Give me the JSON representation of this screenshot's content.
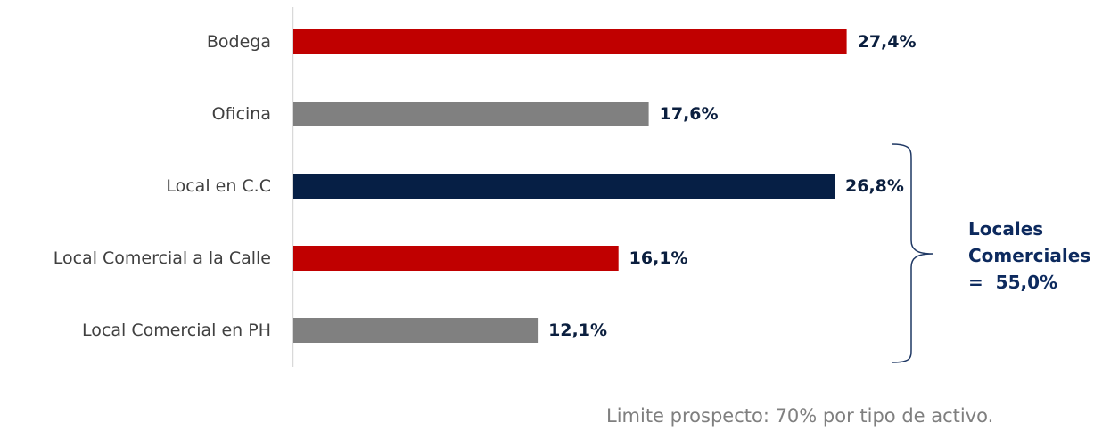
{
  "chart_data": {
    "type": "bar",
    "orientation": "horizontal",
    "categories": [
      "Bodega",
      "Oficina",
      "Local en C.C",
      "Local Comercial a la Calle",
      "Local Comercial en PH"
    ],
    "values": [
      27.4,
      17.6,
      26.8,
      16.1,
      12.1
    ],
    "value_labels": [
      "27,4%",
      "17,6%",
      "26,8%",
      "16,1%",
      "12,1%"
    ],
    "bar_colors": [
      "#c00000",
      "#808080",
      "#061f45",
      "#c00000",
      "#808080"
    ],
    "xlim": [
      0,
      28.5
    ],
    "grid": false,
    "annotation": {
      "lines": [
        "Locales",
        "Comerciales",
        "=  55,0%"
      ],
      "groups": [
        "Local en C.C",
        "Local Comercial a la Calle",
        "Local Comercial en PH"
      ]
    }
  },
  "footnote": "Limite prospecto: 70% por tipo de activo."
}
